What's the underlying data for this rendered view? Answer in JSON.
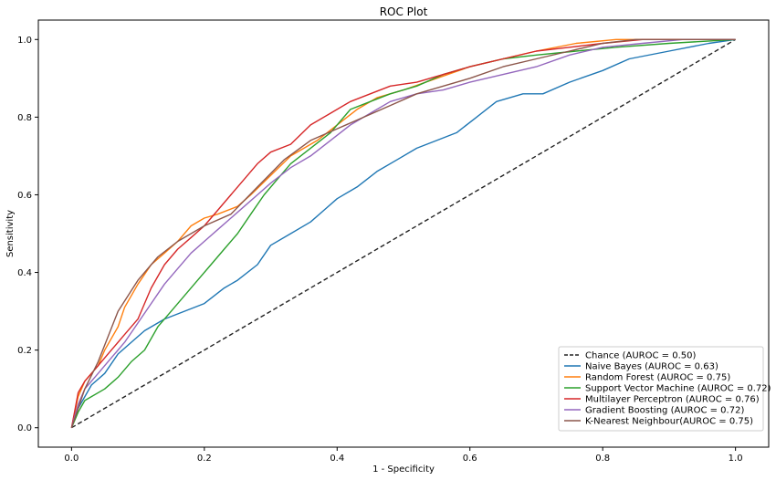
{
  "chart_data": {
    "type": "line",
    "title": "ROC Plot",
    "xlabel": "1 - Specificity",
    "ylabel": "Sensitivity",
    "xlim": [
      -0.05,
      1.05
    ],
    "ylim": [
      -0.05,
      1.05
    ],
    "xticks": [
      "0.0",
      "0.2",
      "0.4",
      "0.6",
      "0.8",
      "1.0"
    ],
    "yticks": [
      "0.0",
      "0.2",
      "0.4",
      "0.6",
      "0.8",
      "1.0"
    ],
    "grid": false,
    "legend_position": "lower-right",
    "series": [
      {
        "name": "Chance (AUROC = 0.50)",
        "color": "#222222",
        "dash": true,
        "points": [
          [
            0,
            0
          ],
          [
            1,
            1
          ]
        ]
      },
      {
        "name": "Naive Bayes (AUROC = 0.63)",
        "color": "#1f77b4",
        "points": [
          [
            0,
            0
          ],
          [
            0.01,
            0.05
          ],
          [
            0.03,
            0.11
          ],
          [
            0.05,
            0.14
          ],
          [
            0.07,
            0.19
          ],
          [
            0.09,
            0.22
          ],
          [
            0.11,
            0.25
          ],
          [
            0.14,
            0.28
          ],
          [
            0.17,
            0.3
          ],
          [
            0.2,
            0.32
          ],
          [
            0.23,
            0.36
          ],
          [
            0.25,
            0.38
          ],
          [
            0.28,
            0.42
          ],
          [
            0.3,
            0.47
          ],
          [
            0.33,
            0.5
          ],
          [
            0.36,
            0.53
          ],
          [
            0.38,
            0.56
          ],
          [
            0.4,
            0.59
          ],
          [
            0.43,
            0.62
          ],
          [
            0.46,
            0.66
          ],
          [
            0.49,
            0.69
          ],
          [
            0.52,
            0.72
          ],
          [
            0.55,
            0.74
          ],
          [
            0.58,
            0.76
          ],
          [
            0.61,
            0.8
          ],
          [
            0.64,
            0.84
          ],
          [
            0.68,
            0.86
          ],
          [
            0.71,
            0.86
          ],
          [
            0.75,
            0.89
          ],
          [
            0.8,
            0.92
          ],
          [
            0.84,
            0.95
          ],
          [
            0.9,
            0.97
          ],
          [
            0.96,
            0.99
          ],
          [
            1,
            1
          ]
        ]
      },
      {
        "name": "Random Forest (AUROC = 0.75)",
        "color": "#ff7f0e",
        "points": [
          [
            0,
            0
          ],
          [
            0.01,
            0.08
          ],
          [
            0.02,
            0.12
          ],
          [
            0.04,
            0.16
          ],
          [
            0.05,
            0.2
          ],
          [
            0.07,
            0.26
          ],
          [
            0.08,
            0.31
          ],
          [
            0.1,
            0.37
          ],
          [
            0.12,
            0.42
          ],
          [
            0.14,
            0.45
          ],
          [
            0.16,
            0.48
          ],
          [
            0.18,
            0.52
          ],
          [
            0.2,
            0.54
          ],
          [
            0.22,
            0.55
          ],
          [
            0.25,
            0.57
          ],
          [
            0.27,
            0.6
          ],
          [
            0.3,
            0.65
          ],
          [
            0.33,
            0.7
          ],
          [
            0.37,
            0.74
          ],
          [
            0.4,
            0.78
          ],
          [
            0.43,
            0.82
          ],
          [
            0.46,
            0.85
          ],
          [
            0.5,
            0.87
          ],
          [
            0.55,
            0.9
          ],
          [
            0.6,
            0.93
          ],
          [
            0.65,
            0.95
          ],
          [
            0.7,
            0.97
          ],
          [
            0.76,
            0.99
          ],
          [
            0.82,
            1.0
          ],
          [
            0.9,
            1.0
          ],
          [
            1,
            1
          ]
        ]
      },
      {
        "name": "Support Vector Machine (AUROC = 0.72)",
        "color": "#2ca02c",
        "points": [
          [
            0,
            0
          ],
          [
            0.01,
            0.04
          ],
          [
            0.02,
            0.07
          ],
          [
            0.05,
            0.1
          ],
          [
            0.07,
            0.13
          ],
          [
            0.09,
            0.17
          ],
          [
            0.11,
            0.2
          ],
          [
            0.13,
            0.26
          ],
          [
            0.15,
            0.3
          ],
          [
            0.17,
            0.34
          ],
          [
            0.19,
            0.38
          ],
          [
            0.21,
            0.42
          ],
          [
            0.23,
            0.46
          ],
          [
            0.25,
            0.5
          ],
          [
            0.27,
            0.55
          ],
          [
            0.29,
            0.6
          ],
          [
            0.31,
            0.64
          ],
          [
            0.33,
            0.68
          ],
          [
            0.36,
            0.72
          ],
          [
            0.39,
            0.76
          ],
          [
            0.42,
            0.82
          ],
          [
            0.45,
            0.84
          ],
          [
            0.48,
            0.86
          ],
          [
            0.52,
            0.88
          ],
          [
            0.56,
            0.91
          ],
          [
            0.6,
            0.93
          ],
          [
            0.65,
            0.95
          ],
          [
            0.7,
            0.96
          ],
          [
            0.76,
            0.97
          ],
          [
            0.82,
            0.98
          ],
          [
            0.9,
            0.99
          ],
          [
            1,
            1
          ]
        ]
      },
      {
        "name": "Multilayer Perceptron (AUROC = 0.76)",
        "color": "#d62728",
        "points": [
          [
            0,
            0
          ],
          [
            0.01,
            0.09
          ],
          [
            0.02,
            0.12
          ],
          [
            0.04,
            0.16
          ],
          [
            0.06,
            0.2
          ],
          [
            0.08,
            0.24
          ],
          [
            0.1,
            0.28
          ],
          [
            0.12,
            0.36
          ],
          [
            0.14,
            0.42
          ],
          [
            0.16,
            0.46
          ],
          [
            0.18,
            0.49
          ],
          [
            0.2,
            0.52
          ],
          [
            0.22,
            0.56
          ],
          [
            0.24,
            0.6
          ],
          [
            0.26,
            0.64
          ],
          [
            0.28,
            0.68
          ],
          [
            0.3,
            0.71
          ],
          [
            0.33,
            0.73
          ],
          [
            0.36,
            0.78
          ],
          [
            0.39,
            0.81
          ],
          [
            0.42,
            0.84
          ],
          [
            0.45,
            0.86
          ],
          [
            0.48,
            0.88
          ],
          [
            0.52,
            0.89
          ],
          [
            0.56,
            0.91
          ],
          [
            0.6,
            0.93
          ],
          [
            0.65,
            0.95
          ],
          [
            0.7,
            0.97
          ],
          [
            0.75,
            0.98
          ],
          [
            0.8,
            0.99
          ],
          [
            0.86,
            1.0
          ],
          [
            0.92,
            1.0
          ],
          [
            1,
            1
          ]
        ]
      },
      {
        "name": "Gradient Boosting (AUROC = 0.72)",
        "color": "#9467bd",
        "points": [
          [
            0,
            0
          ],
          [
            0.01,
            0.06
          ],
          [
            0.02,
            0.1
          ],
          [
            0.04,
            0.14
          ],
          [
            0.06,
            0.18
          ],
          [
            0.08,
            0.22
          ],
          [
            0.1,
            0.27
          ],
          [
            0.12,
            0.32
          ],
          [
            0.14,
            0.37
          ],
          [
            0.16,
            0.41
          ],
          [
            0.18,
            0.45
          ],
          [
            0.2,
            0.48
          ],
          [
            0.22,
            0.51
          ],
          [
            0.24,
            0.54
          ],
          [
            0.26,
            0.57
          ],
          [
            0.28,
            0.6
          ],
          [
            0.3,
            0.63
          ],
          [
            0.33,
            0.67
          ],
          [
            0.36,
            0.7
          ],
          [
            0.39,
            0.74
          ],
          [
            0.42,
            0.78
          ],
          [
            0.45,
            0.81
          ],
          [
            0.48,
            0.84
          ],
          [
            0.52,
            0.86
          ],
          [
            0.56,
            0.87
          ],
          [
            0.6,
            0.89
          ],
          [
            0.65,
            0.91
          ],
          [
            0.7,
            0.93
          ],
          [
            0.75,
            0.96
          ],
          [
            0.8,
            0.98
          ],
          [
            0.86,
            0.99
          ],
          [
            0.92,
            1.0
          ],
          [
            1,
            1
          ]
        ]
      },
      {
        "name": "K-Nearest Neighbour(AUROC = 0.75)",
        "color": "#8c564b",
        "points": [
          [
            0,
            0
          ],
          [
            0.02,
            0.1
          ],
          [
            0.04,
            0.17
          ],
          [
            0.07,
            0.3
          ],
          [
            0.1,
            0.38
          ],
          [
            0.13,
            0.44
          ],
          [
            0.16,
            0.48
          ],
          [
            0.2,
            0.52
          ],
          [
            0.24,
            0.55
          ],
          [
            0.28,
            0.62
          ],
          [
            0.32,
            0.69
          ],
          [
            0.36,
            0.74
          ],
          [
            0.4,
            0.77
          ],
          [
            0.44,
            0.8
          ],
          [
            0.48,
            0.83
          ],
          [
            0.52,
            0.86
          ],
          [
            0.56,
            0.88
          ],
          [
            0.6,
            0.9
          ],
          [
            0.65,
            0.93
          ],
          [
            0.7,
            0.95
          ],
          [
            0.75,
            0.97
          ],
          [
            0.8,
            0.99
          ],
          [
            0.85,
            1.0
          ],
          [
            0.9,
            1.0
          ],
          [
            1,
            1
          ]
        ]
      }
    ]
  }
}
